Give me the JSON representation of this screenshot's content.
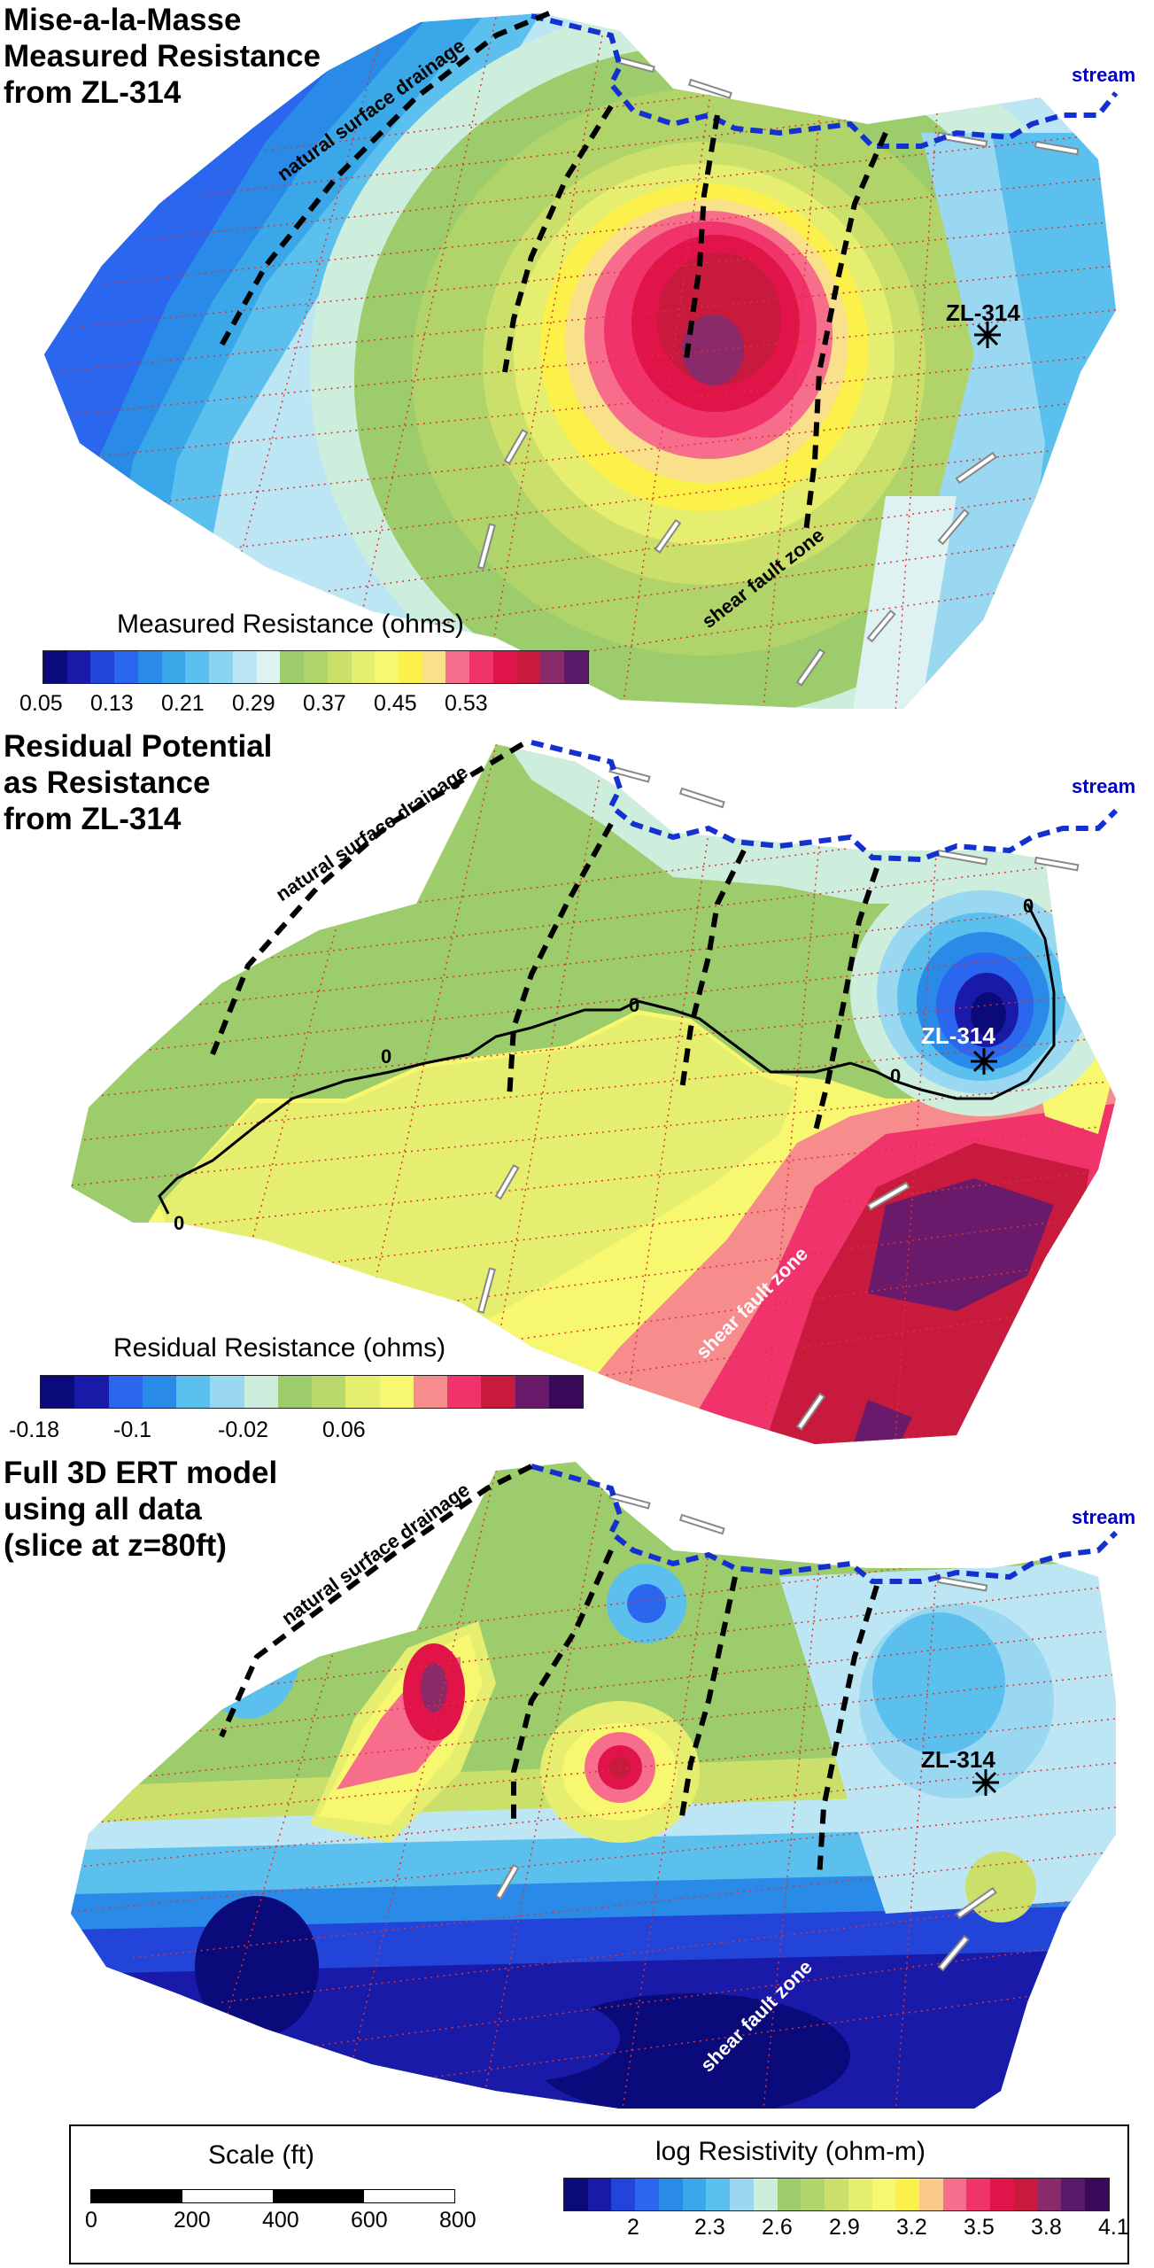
{
  "panels": [
    {
      "title": "Mise-a-la-Masse\nMeasured Resistance\nfrom ZL-314",
      "labels": {
        "drainage": "natural surface drainage",
        "stream": "stream",
        "well": "ZL-314",
        "fault": "shear fault zone"
      },
      "colorbar": {
        "title": "Measured Resistance (ohms)",
        "ticks": [
          "0.05",
          "0.13",
          "0.21",
          "0.29",
          "0.37",
          "0.45",
          "0.53"
        ],
        "colors": [
          "#0a0a7a",
          "#1a1aa8",
          "#2244d8",
          "#2a66ee",
          "#2a8ae8",
          "#3aa8e8",
          "#5cc0ee",
          "#8ad4f2",
          "#bde6f5",
          "#dff2f2",
          "#9ccc6c",
          "#b0d36a",
          "#cbe06a",
          "#e6ee70",
          "#f8f870",
          "#fbf14a",
          "#f9e08a",
          "#f76e8c",
          "#f0336a",
          "#e01448",
          "#c81a3c",
          "#8a2a6a",
          "#5a1a6a"
        ]
      }
    },
    {
      "title": "Residual Potential\nas Resistance\nfrom ZL-314",
      "labels": {
        "drainage": "natural surface drainage",
        "stream": "stream",
        "well": "ZL-314",
        "fault": "shear fault zone",
        "contour": "0"
      },
      "colorbar": {
        "title": "Residual Resistance (ohms)",
        "ticks": [
          "-0.18",
          "-0.1",
          "-0.02",
          "0.06"
        ],
        "colors": [
          "#0a0a7a",
          "#1a1aa8",
          "#2a66ee",
          "#2a8ae8",
          "#5cc0ee",
          "#9ad8f2",
          "#cdeedd",
          "#9ccc6c",
          "#b8d86c",
          "#e6ee70",
          "#f8f870",
          "#f78c8c",
          "#f0336a",
          "#c81a3c",
          "#6a1a6a",
          "#3a0a5a"
        ]
      }
    },
    {
      "title": "Full 3D ERT model\nusing all data\n(slice at z=80ft)",
      "labels": {
        "drainage": "natural surface drainage",
        "stream": "stream",
        "well": "ZL-314",
        "fault": "shear fault zone"
      }
    }
  ],
  "legend": {
    "scale_title": "Scale (ft)",
    "scale_ticks": [
      "0",
      "200",
      "400",
      "600",
      "800"
    ],
    "resistivity_title": "log Resistivity (ohm-m)",
    "resistivity_ticks": [
      "2",
      "2.3",
      "2.6",
      "2.9",
      "3.2",
      "3.5",
      "3.8",
      "4.1"
    ],
    "resistivity_colors": [
      "#0a0a7a",
      "#1a1aa8",
      "#2244d8",
      "#2a66ee",
      "#2a8ae8",
      "#3aa8e8",
      "#5cc0ee",
      "#9ad8f2",
      "#cdeedd",
      "#9ccc6c",
      "#b0d36a",
      "#cbe06a",
      "#e6ee70",
      "#f8f870",
      "#fbf14a",
      "#f9c88a",
      "#f76e8c",
      "#f0336a",
      "#e01448",
      "#c81a3c",
      "#8a2a6a",
      "#5a1a6a",
      "#3a0a5a"
    ]
  }
}
